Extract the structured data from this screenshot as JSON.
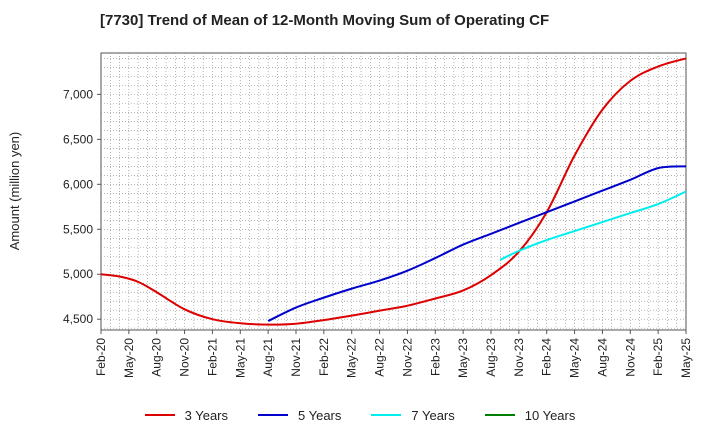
{
  "chart_data": {
    "type": "line",
    "title": "[7730]  Trend of Mean of 12-Month Moving Sum of Operating CF",
    "xlabel": "",
    "ylabel": "Amount (million yen)",
    "ylim": [
      4380,
      7460
    ],
    "yticks": [
      4500,
      5000,
      5500,
      6000,
      6500,
      7000
    ],
    "ytick_labels": [
      "4,500",
      "5,000",
      "5,500",
      "6,000",
      "6,500",
      "7,000"
    ],
    "x_tick_labels": [
      "Feb-20",
      "May-20",
      "Aug-20",
      "Nov-20",
      "Feb-21",
      "May-21",
      "Aug-21",
      "Nov-21",
      "Feb-22",
      "May-22",
      "Aug-22",
      "Nov-22",
      "Feb-23",
      "May-23",
      "Aug-23",
      "Nov-23",
      "Feb-24",
      "May-24",
      "Aug-24",
      "Nov-24",
      "Feb-25",
      "May-25"
    ],
    "x_range_months": [
      0,
      63
    ],
    "grid": true,
    "legend_position": "bottom",
    "series": [
      {
        "name": "3 Years",
        "color": "#dd0000",
        "x": [
          0,
          2,
          4,
          6,
          9,
          12,
          15,
          18,
          21,
          24,
          27,
          30,
          33,
          36,
          39,
          42,
          45,
          48,
          51,
          54,
          57,
          60,
          63
        ],
        "values": [
          5000,
          4975,
          4915,
          4800,
          4610,
          4500,
          4455,
          4440,
          4450,
          4490,
          4540,
          4595,
          4650,
          4730,
          4820,
          4990,
          5250,
          5690,
          6320,
          6830,
          7150,
          7310,
          7400
        ]
      },
      {
        "name": "5 Years",
        "color": "#0000cc",
        "x": [
          18,
          21,
          24,
          27,
          30,
          33,
          36,
          39,
          42,
          45,
          48,
          51,
          54,
          57,
          60,
          63
        ],
        "values": [
          4480,
          4630,
          4740,
          4840,
          4930,
          5040,
          5180,
          5330,
          5450,
          5570,
          5690,
          5810,
          5930,
          6050,
          6180,
          6200
        ]
      },
      {
        "name": "7 Years",
        "color": "#00eeee",
        "x": [
          43,
          45,
          48,
          51,
          54,
          57,
          60,
          63
        ],
        "values": [
          5160,
          5260,
          5380,
          5480,
          5580,
          5680,
          5780,
          5920
        ]
      },
      {
        "name": "10 Years",
        "color": "#008000",
        "x": [],
        "values": []
      }
    ]
  }
}
